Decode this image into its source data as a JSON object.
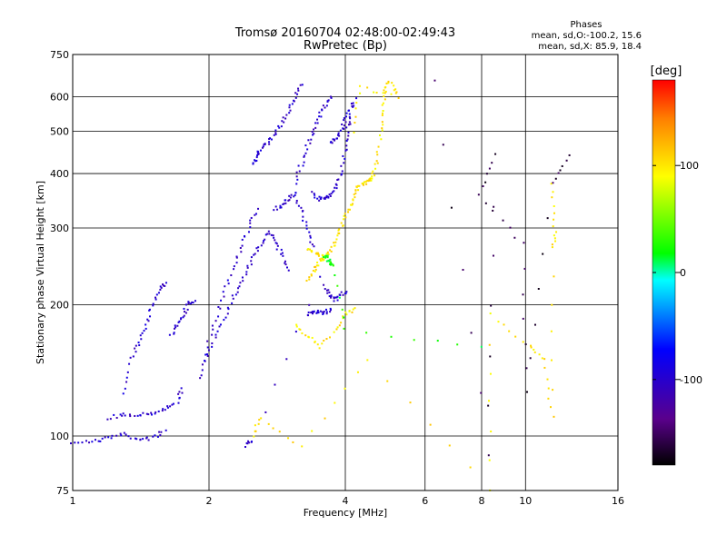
{
  "chart_data": {
    "type": "scatter",
    "title": "Tromsø 20160704 02:48:00-02:49:43",
    "subtitle": "RwPretec (Bp)",
    "xlabel": "Frequency [MHz]",
    "ylabel": "Stationary phase Virtual Height [km]",
    "x_scale": "log",
    "y_scale": "log",
    "xlim": [
      1,
      16
    ],
    "ylim": [
      75,
      750
    ],
    "x_ticks": [
      1,
      2,
      4,
      6,
      8,
      10,
      16
    ],
    "x_tick_labels": [
      "1",
      "2",
      "4",
      "6",
      "8",
      "10",
      "16"
    ],
    "y_ticks": [
      75,
      100,
      200,
      300,
      400,
      500,
      600,
      750
    ],
    "y_tick_labels": [
      "75",
      "100",
      "200",
      "300",
      "400",
      "500",
      "600",
      "750"
    ],
    "grid": true,
    "stats": {
      "heading": "Phases",
      "o_line": "mean, sd,O:-100.2, 15.6",
      "x_line": "mean, sd,X:  85.9, 18.4"
    },
    "colorbar": {
      "label": "[deg]",
      "range": [
        -180,
        180
      ],
      "ticks": [
        100,
        0,
        -100
      ],
      "tick_labels": [
        "100",
        "0",
        "-100"
      ]
    },
    "series": [
      {
        "phase_deg": -100,
        "traces": [
          [
            [
              1.0,
              97
            ],
            [
              1.1,
              97
            ],
            [
              1.2,
              99
            ],
            [
              1.3,
              101
            ],
            [
              1.4,
              98
            ],
            [
              1.5,
              99
            ],
            [
              1.6,
              103
            ]
          ],
          [
            [
              1.2,
              110
            ],
            [
              1.3,
              112
            ],
            [
              1.4,
              112
            ],
            [
              1.5,
              113
            ],
            [
              1.6,
              115
            ],
            [
              1.7,
              120
            ],
            [
              1.75,
              128
            ]
          ],
          [
            [
              1.3,
              125
            ],
            [
              1.35,
              150
            ],
            [
              1.4,
              165
            ],
            [
              1.45,
              180
            ],
            [
              1.5,
              200
            ],
            [
              1.55,
              215
            ],
            [
              1.6,
              225
            ]
          ],
          [
            [
              1.65,
              170
            ],
            [
              1.7,
              180
            ],
            [
              1.75,
              190
            ],
            [
              1.8,
              200
            ],
            [
              1.85,
              205
            ]
          ],
          [
            [
              1.9,
              135
            ],
            [
              2.0,
              155
            ],
            [
              2.1,
              175
            ],
            [
              2.2,
              195
            ],
            [
              2.3,
              215
            ],
            [
              2.4,
              235
            ],
            [
              2.5,
              255
            ],
            [
              2.6,
              275
            ],
            [
              2.7,
              295
            ],
            [
              2.8,
              280
            ],
            [
              2.9,
              260
            ],
            [
              3.0,
              240
            ]
          ],
          [
            [
              1.95,
              150
            ],
            [
              2.05,
              180
            ],
            [
              2.15,
              210
            ],
            [
              2.25,
              240
            ],
            [
              2.35,
              270
            ],
            [
              2.45,
              300
            ],
            [
              2.55,
              330
            ]
          ],
          [
            [
              2.5,
              420
            ],
            [
              2.55,
              440
            ],
            [
              2.6,
              455
            ],
            [
              2.7,
              470
            ],
            [
              2.8,
              490
            ],
            [
              2.9,
              520
            ],
            [
              3.0,
              560
            ],
            [
              3.1,
              600
            ],
            [
              3.2,
              640
            ]
          ],
          [
            [
              3.1,
              380
            ],
            [
              3.2,
              420
            ],
            [
              3.3,
              460
            ],
            [
              3.4,
              500
            ],
            [
              3.5,
              540
            ],
            [
              3.6,
              570
            ],
            [
              3.7,
              600
            ]
          ],
          [
            [
              2.8,
              330
            ],
            [
              2.9,
              340
            ],
            [
              3.0,
              350
            ],
            [
              3.1,
              360
            ],
            [
              3.2,
              330
            ],
            [
              3.3,
              300
            ],
            [
              3.4,
              270
            ]
          ],
          [
            [
              3.4,
              360
            ],
            [
              3.5,
              350
            ],
            [
              3.6,
              350
            ],
            [
              3.7,
              355
            ],
            [
              3.8,
              370
            ],
            [
              3.9,
              400
            ],
            [
              4.0,
              450
            ],
            [
              4.05,
              500
            ],
            [
              4.1,
              540
            ]
          ],
          [
            [
              3.7,
              470
            ],
            [
              3.8,
              480
            ],
            [
              3.9,
              500
            ],
            [
              4.0,
              530
            ],
            [
              4.1,
              560
            ],
            [
              4.2,
              590
            ]
          ],
          [
            [
              3.3,
              190
            ],
            [
              3.4,
              192
            ],
            [
              3.5,
              193
            ],
            [
              3.6,
              192
            ],
            [
              3.7,
              195
            ]
          ],
          [
            [
              3.6,
              220
            ],
            [
              3.7,
              210
            ],
            [
              3.8,
              205
            ],
            [
              3.9,
              210
            ],
            [
              4.0,
              215
            ]
          ],
          [
            [
              2.4,
              95
            ],
            [
              2.5,
              98
            ],
            [
              3.5,
              230
            ]
          ]
        ]
      },
      {
        "phase_deg": 100,
        "traces": [
          [
            [
              3.3,
              225
            ],
            [
              3.4,
              240
            ],
            [
              3.5,
              250
            ],
            [
              3.6,
              258
            ],
            [
              3.7,
              265
            ],
            [
              3.8,
              280
            ],
            [
              3.9,
              300
            ],
            [
              4.0,
              320
            ],
            [
              4.1,
              340
            ],
            [
              4.2,
              360
            ],
            [
              4.3,
              375
            ],
            [
              4.4,
              380
            ],
            [
              4.5,
              385
            ],
            [
              4.6,
              395
            ],
            [
              4.7,
              430
            ],
            [
              4.8,
              500
            ],
            [
              4.85,
              560
            ],
            [
              4.9,
              620
            ],
            [
              4.95,
              650
            ]
          ],
          [
            [
              3.3,
              270
            ],
            [
              3.4,
              265
            ],
            [
              3.5,
              260
            ],
            [
              3.6,
              255
            ]
          ],
          [
            [
              3.1,
              180
            ],
            [
              3.3,
              170
            ],
            [
              3.5,
              160
            ],
            [
              3.8,
              175
            ],
            [
              4.0,
              190
            ],
            [
              4.2,
              195
            ]
          ],
          [
            [
              5.1,
              640
            ],
            [
              5.2,
              600
            ],
            [
              4.3,
              630
            ],
            [
              4.2,
              500
            ]
          ],
          [
            [
              2.5,
              100
            ],
            [
              2.6,
              110
            ],
            [
              3.2,
              95
            ],
            [
              4.5,
              150
            ],
            [
              8.3,
              75
            ],
            [
              8.4,
              190
            ],
            [
              10.2,
              160
            ],
            [
              11.0,
              150
            ],
            [
              11.5,
              110
            ],
            [
              11.5,
              270
            ],
            [
              11.6,
              300
            ],
            [
              11.5,
              380
            ]
          ]
        ]
      },
      {
        "phase_deg": 20,
        "traces": [
          [
            [
              3.6,
              260
            ],
            [
              3.65,
              255
            ],
            [
              3.7,
              250
            ],
            [
              3.75,
              248
            ],
            [
              4.0,
              175
            ],
            [
              8.0,
              160
            ]
          ]
        ]
      },
      {
        "phase_deg": -160,
        "traces": [
          [
            [
              6.3,
              650
            ],
            [
              8.3,
              90
            ],
            [
              8.5,
              440
            ],
            [
              7.9,
              360
            ],
            [
              9.9,
              275
            ],
            [
              10.0,
              125
            ],
            [
              11.5,
              380
            ],
            [
              12.5,
              440
            ]
          ]
        ]
      }
    ]
  }
}
